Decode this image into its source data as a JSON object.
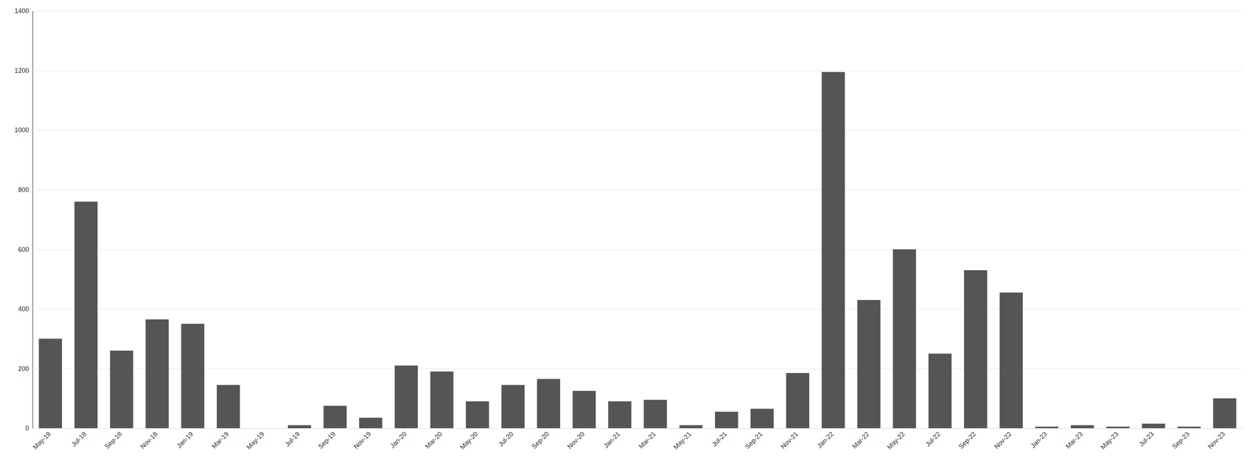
{
  "chart_data": {
    "type": "bar",
    "categories": [
      "May-18",
      "Jul-18",
      "Sep-18",
      "Nov-18",
      "Jan-19",
      "Mar-19",
      "May-19",
      "Jul-19",
      "Sep-19",
      "Nov-19",
      "Jan-20",
      "Mar-20",
      "May-20",
      "Jul-20",
      "Sep-20",
      "Nov-20",
      "Jan-21",
      "Mar-21",
      "May-21",
      "Jul-21",
      "Sep-21",
      "Nov-21",
      "Jan-22",
      "Mar-22",
      "May-22",
      "Jul-22",
      "Sep-22",
      "Nov-22",
      "Jan-23",
      "Mar-23",
      "May-23",
      "Jul-23",
      "Sep-23",
      "Nov-23"
    ],
    "values": [
      300,
      760,
      260,
      365,
      350,
      145,
      0,
      10,
      75,
      35,
      210,
      190,
      90,
      145,
      165,
      125,
      90,
      95,
      10,
      55,
      65,
      185,
      1195,
      430,
      600,
      250,
      530,
      455,
      5,
      10,
      5,
      15,
      5,
      100
    ],
    "color": "#555555",
    "ylim": [
      0,
      1400
    ],
    "yticks": [
      0,
      200,
      400,
      600,
      800,
      1000,
      1200,
      1400
    ],
    "grid": true
  }
}
